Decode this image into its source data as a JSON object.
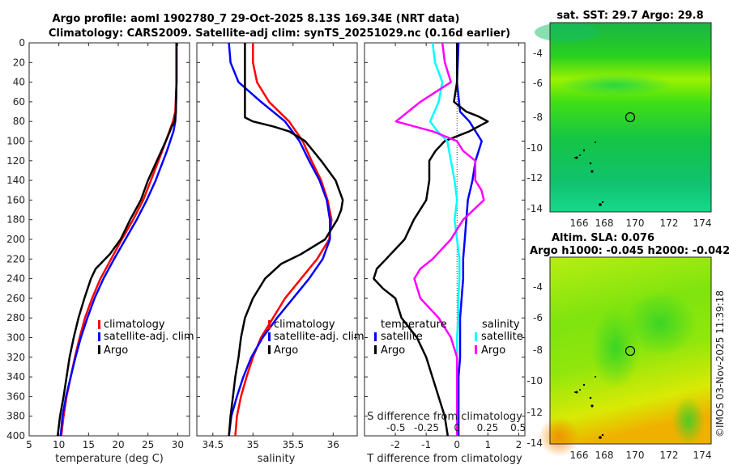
{
  "title": {
    "line1": "Argo profile: aoml 1902780_7 29-Oct-2025 8.13S 169.34E (NRT data)",
    "line2": "Climatology: CARS2009. Satellite-adj clim: synTS_20251029.nc (0.16d earlier)"
  },
  "copyright": "©IMOS 03-Nov-2025 11:39:18",
  "colors": {
    "climatology": "#ff0000",
    "satellite": "#0000ff",
    "argo": "#000000",
    "salinity_sat": "#00ffff",
    "salinity_argo": "#ff00ff"
  },
  "chart_data": [
    {
      "type": "line",
      "panel": "temperature",
      "xlabel": "temperature (deg C)",
      "ylabel": "",
      "xlim": [
        5,
        32
      ],
      "ylim": [
        400,
        0
      ],
      "xticks": [
        5,
        10,
        15,
        20,
        25,
        30
      ],
      "yticks": [
        0,
        20,
        40,
        60,
        80,
        100,
        120,
        140,
        160,
        180,
        200,
        220,
        240,
        260,
        280,
        300,
        320,
        340,
        360,
        380,
        400
      ],
      "legend": [
        "climatology",
        "satellite-adj. clim",
        "Argo"
      ],
      "legend_position": "bottom-right",
      "series": [
        {
          "name": "climatology",
          "color": "#ff0000",
          "depth": [
            0,
            40,
            70,
            80,
            90,
            110,
            140,
            160,
            180,
            200,
            220,
            240,
            260,
            280,
            300,
            320,
            340,
            360,
            380,
            400
          ],
          "values": [
            29.8,
            29.8,
            29.6,
            29.2,
            28.6,
            27.4,
            25.5,
            24.2,
            22.5,
            20.6,
            18.8,
            17.0,
            15.6,
            14.4,
            13.5,
            12.7,
            12.0,
            11.3,
            10.8,
            10.4
          ]
        },
        {
          "name": "satellite-adj. clim",
          "color": "#0000ff",
          "depth": [
            0,
            40,
            70,
            80,
            90,
            110,
            140,
            160,
            180,
            200,
            220,
            240,
            260,
            280,
            300,
            320,
            340,
            360,
            380,
            400
          ],
          "values": [
            29.8,
            29.8,
            29.7,
            29.6,
            29.3,
            28.2,
            26.3,
            24.8,
            23.1,
            21.2,
            19.3,
            17.5,
            16.0,
            14.8,
            13.7,
            12.8,
            12.0,
            11.2,
            10.6,
            10.3
          ]
        },
        {
          "name": "Argo",
          "color": "#000000",
          "depth": [
            0,
            40,
            70,
            80,
            85,
            90,
            100,
            120,
            140,
            160,
            180,
            200,
            215,
            230,
            240,
            260,
            280,
            300,
            320,
            340,
            360,
            380,
            400
          ],
          "values": [
            29.8,
            29.8,
            29.7,
            29.5,
            29.0,
            28.7,
            28.0,
            26.5,
            25.0,
            23.8,
            22.0,
            20.4,
            18.6,
            16.2,
            15.4,
            14.3,
            13.3,
            12.5,
            11.8,
            11.3,
            10.8,
            10.2,
            9.8
          ]
        }
      ]
    },
    {
      "type": "line",
      "panel": "salinity",
      "xlabel": "salinity",
      "xlim": [
        34.3,
        36.3
      ],
      "ylim": [
        400,
        0
      ],
      "xticks": [
        34.5,
        35,
        35.5,
        36
      ],
      "legend": [
        "climatology",
        "satellite-adj. clim",
        "Argo"
      ],
      "legend_position": "bottom-right",
      "series": [
        {
          "name": "climatology",
          "color": "#ff0000",
          "depth": [
            0,
            20,
            40,
            60,
            80,
            100,
            120,
            140,
            160,
            180,
            200,
            220,
            240,
            260,
            280,
            300,
            320,
            340,
            360,
            380,
            400
          ],
          "values": [
            35.0,
            35.0,
            35.05,
            35.2,
            35.45,
            35.62,
            35.73,
            35.85,
            35.93,
            35.98,
            35.95,
            35.8,
            35.6,
            35.4,
            35.25,
            35.1,
            35.0,
            34.92,
            34.85,
            34.8,
            34.78
          ]
        },
        {
          "name": "satellite-adj. clim",
          "color": "#0000ff",
          "depth": [
            0,
            20,
            40,
            60,
            80,
            100,
            120,
            140,
            160,
            180,
            200,
            220,
            240,
            260,
            280,
            300,
            320,
            340,
            360,
            380,
            400
          ],
          "values": [
            34.7,
            34.72,
            34.82,
            35.1,
            35.4,
            35.58,
            35.7,
            35.83,
            35.92,
            35.96,
            35.96,
            35.87,
            35.7,
            35.5,
            35.3,
            35.12,
            34.98,
            34.88,
            34.8,
            34.73,
            34.7
          ]
        },
        {
          "name": "Argo",
          "color": "#000000",
          "depth": [
            0,
            20,
            40,
            60,
            76,
            80,
            85,
            90,
            100,
            120,
            140,
            160,
            170,
            180,
            200,
            215,
            225,
            240,
            260,
            280,
            300,
            320,
            340,
            360,
            380,
            400
          ],
          "values": [
            34.9,
            34.9,
            34.9,
            34.9,
            34.9,
            35.0,
            35.25,
            35.45,
            35.65,
            35.85,
            36.03,
            36.12,
            36.1,
            36.05,
            35.9,
            35.6,
            35.35,
            35.15,
            35.0,
            34.9,
            34.85,
            34.82,
            34.78,
            34.75,
            34.72,
            34.7
          ]
        }
      ]
    },
    {
      "type": "line",
      "panel": "difference",
      "xlabel": "T difference from climatology",
      "top_xlabel": "S difference from climatology",
      "xlim": [
        -3,
        2.2
      ],
      "ylim": [
        400,
        0
      ],
      "xticks": [
        -2,
        -1,
        0,
        1,
        2
      ],
      "top_xticks": [
        "-0.5",
        "-0.25",
        "0",
        "0.25",
        "0.5"
      ],
      "legend_temperature": {
        "title": "temperature",
        "items": [
          "satellite",
          "Argo"
        ]
      },
      "legend_salinity": {
        "title": "salinity",
        "items": [
          "satellite",
          "Argo"
        ]
      },
      "series": [
        {
          "name": "temperature satellite",
          "color": "#0000ff",
          "depth": [
            0,
            40,
            70,
            80,
            90,
            100,
            110,
            120,
            140,
            160,
            180,
            200,
            220,
            240,
            260,
            280,
            300,
            320,
            340,
            360,
            380,
            400
          ],
          "values": [
            0.05,
            0.0,
            0.1,
            0.4,
            0.6,
            0.8,
            0.7,
            0.6,
            0.5,
            0.35,
            0.3,
            0.25,
            0.2,
            0.2,
            0.15,
            0.1,
            0.1,
            0.1,
            0.05,
            0.05,
            0.05,
            0.05
          ]
        },
        {
          "name": "temperature Argo",
          "color": "#000000",
          "depth": [
            0,
            20,
            40,
            60,
            70,
            75,
            80,
            85,
            90,
            95,
            100,
            110,
            120,
            140,
            160,
            180,
            200,
            220,
            230,
            240,
            250,
            260,
            280,
            300,
            320,
            340,
            360,
            380,
            400
          ],
          "values": [
            0.0,
            0.0,
            0.0,
            -0.1,
            0.3,
            0.7,
            1.0,
            0.7,
            0.4,
            0.0,
            -0.4,
            -0.7,
            -0.9,
            -0.9,
            -1.0,
            -1.4,
            -1.7,
            -2.3,
            -2.6,
            -2.7,
            -2.4,
            -2.0,
            -1.8,
            -1.3,
            -1.0,
            -0.8,
            -0.6,
            -0.4,
            -0.3
          ]
        },
        {
          "name": "salinity satellite",
          "color": "#00ffff",
          "depth": [
            0,
            20,
            40,
            60,
            80,
            90,
            100,
            120,
            140,
            160,
            180,
            200,
            220,
            240,
            260,
            280,
            300,
            320,
            340,
            360,
            380,
            400
          ],
          "values": [
            -0.2,
            -0.18,
            -0.12,
            -0.15,
            -0.22,
            -0.16,
            -0.08,
            -0.05,
            -0.02,
            0.0,
            -0.02,
            0.0,
            0.02,
            0.02,
            0.01,
            0.01,
            0.0,
            0.0,
            0.0,
            0.0,
            0.0,
            0.0
          ]
        },
        {
          "name": "salinity Argo",
          "color": "#ff00ff",
          "depth": [
            0,
            20,
            40,
            60,
            70,
            80,
            90,
            100,
            110,
            120,
            140,
            150,
            160,
            180,
            200,
            220,
            230,
            240,
            260,
            280,
            300,
            320,
            340,
            360,
            380,
            400
          ],
          "values": [
            -0.12,
            -0.1,
            -0.05,
            -0.3,
            -0.4,
            -0.5,
            -0.2,
            0.0,
            0.05,
            0.15,
            0.15,
            0.2,
            0.22,
            0.05,
            -0.05,
            -0.2,
            -0.3,
            -0.35,
            -0.3,
            -0.15,
            -0.05,
            0.0,
            0.0,
            0.0,
            0.0,
            0.0
          ]
        }
      ]
    }
  ],
  "maps": [
    {
      "title": "sat. SST: 29.7 Argo: 29.8",
      "xticks": [
        "166",
        "168",
        "170",
        "172",
        "174"
      ],
      "yticks": [
        "-4",
        "-6",
        "-8",
        "-10",
        "-12",
        "-14"
      ]
    },
    {
      "title_line1": "Altim. SLA: 0.076",
      "title_line2": "Argo h1000: -0.045 h2000: -0.042",
      "xticks": [
        "166",
        "168",
        "170",
        "172",
        "174"
      ],
      "yticks": [
        "-4",
        "-6",
        "-8",
        "-10",
        "-12",
        "-14"
      ]
    }
  ]
}
